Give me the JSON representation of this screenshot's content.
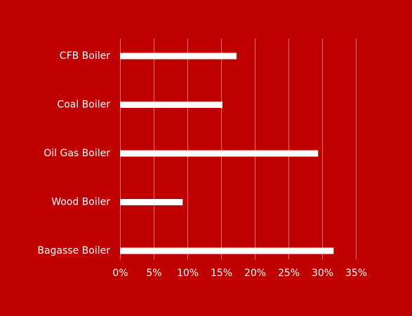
{
  "chart_data": {
    "type": "bar",
    "orientation": "horizontal",
    "categories": [
      "CFB Boiler",
      "Coal Boiler",
      "Oil Gas Boiler",
      "Wood Boiler",
      "Bagasse Boiler"
    ],
    "values": [
      0.173,
      0.152,
      0.294,
      0.093,
      0.317
    ],
    "xlim": [
      0,
      0.35
    ],
    "x_ticks": [
      0,
      0.05,
      0.1,
      0.15,
      0.2,
      0.25,
      0.3,
      0.35
    ],
    "x_tick_labels": [
      "0%",
      "5%",
      "10%",
      "15%",
      "20%",
      "25%",
      "30%",
      "35%"
    ],
    "grid": true,
    "legend": "none",
    "colors": {
      "background": "#c00000",
      "bar": "#ffffff",
      "grid": "#e07a7a",
      "text": "#ffffff"
    }
  }
}
